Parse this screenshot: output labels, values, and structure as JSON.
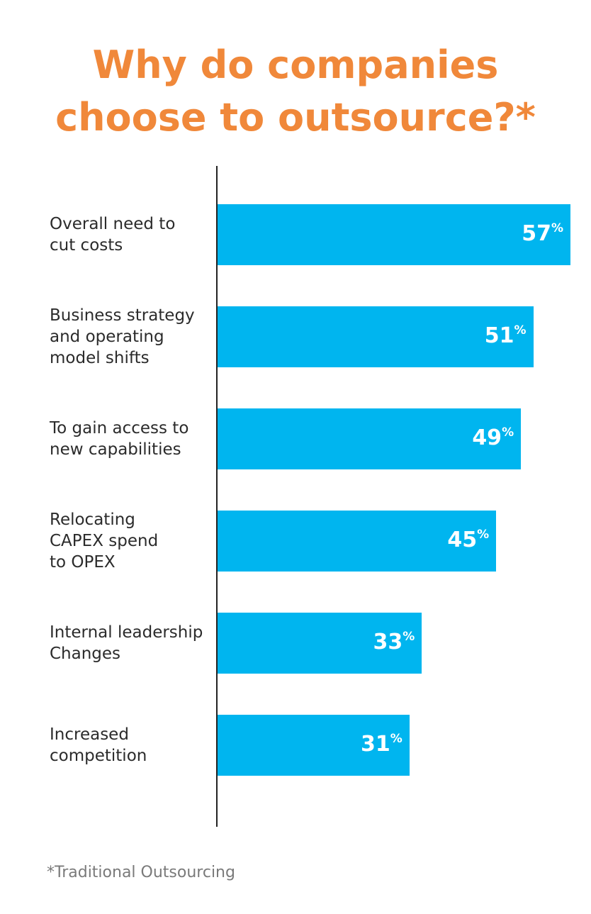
{
  "chart_data": {
    "type": "bar",
    "orientation": "horizontal",
    "title": "Why do companies\nchoose to outsource?*",
    "categories": [
      "Overall need to\ncut costs",
      "Business strategy\nand operating\nmodel shifts",
      "To gain access to\nnew capabilities",
      "Relocating\nCAPEX spend\nto OPEX",
      "Internal leadership\nChanges",
      "Increased\ncompetition"
    ],
    "values": [
      57,
      51,
      49,
      45,
      33,
      31
    ],
    "value_labels": [
      "57%",
      "51%",
      "49%",
      "45%",
      "33%",
      "31%"
    ],
    "color": "#00b5ef",
    "footnote": "*Traditional Outsourcing"
  }
}
